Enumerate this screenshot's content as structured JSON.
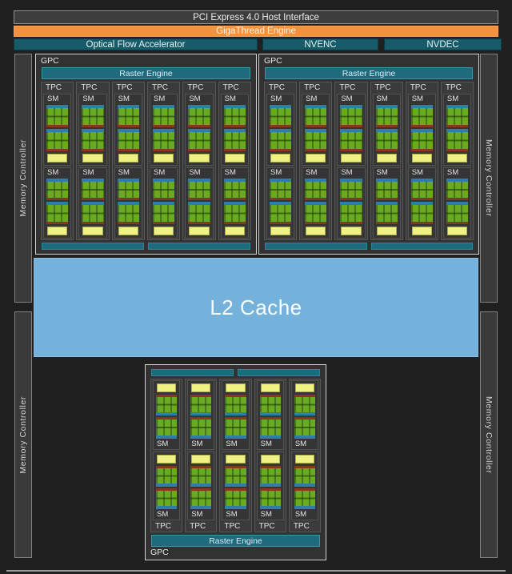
{
  "header": {
    "pci": "PCI Express 4.0 Host Interface",
    "gigathread": "GigaThread Engine",
    "ofa": "Optical Flow Accelerator",
    "nvenc": "NVENC",
    "nvdec": "NVDEC"
  },
  "labels": {
    "gpc": "GPC",
    "raster_engine": "Raster Engine",
    "tpc": "TPC",
    "sm": "SM",
    "l2_cache": "L2 Cache",
    "memory_controller": "Memory Controller"
  },
  "structure": {
    "top_gpcs": 2,
    "tpcs_per_top_gpc": 6,
    "bottom_gpcs": 1,
    "tpcs_per_bottom_gpc": 5,
    "sms_per_tpc": 2,
    "core_units_per_sm": 2,
    "shared_bars_per_gpc": 2,
    "memory_controllers": 4
  },
  "colors": {
    "background": "#202020",
    "gigathread_orange": "#f2923f",
    "media_teal": "#175b68",
    "raster_teal": "#1d6b7d",
    "scheduler_blue": "#2d7fa6",
    "core_green_light": "#6aaa21",
    "core_green_dark": "#47791a",
    "loadstore_red": "#8a3722",
    "register_yellow": "#eff283",
    "l2_blue": "#74b2dc",
    "gpc_border_gray": "#d2d2d2"
  }
}
